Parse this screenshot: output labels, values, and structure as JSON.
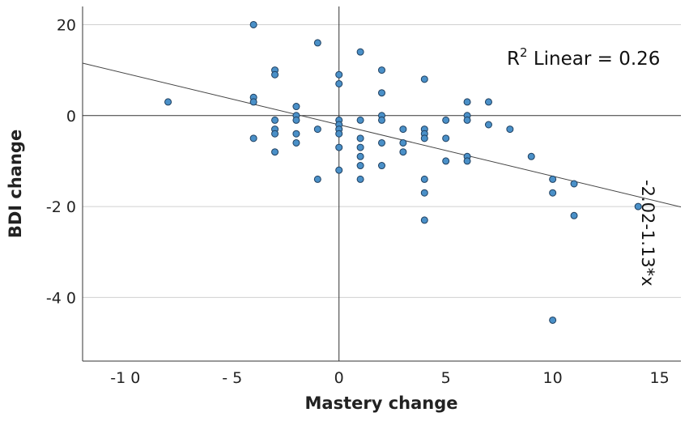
{
  "chart_data": {
    "type": "scatter",
    "xlabel": "Mastery change",
    "ylabel": "BDI change",
    "xlim": [
      -12,
      16
    ],
    "ylim": [
      -54,
      24
    ],
    "x_ticks": [
      -10,
      -5,
      0,
      5,
      10,
      15
    ],
    "x_tick_labels": [
      "-1 0",
      "- 5",
      "0",
      "5",
      "10",
      "15"
    ],
    "y_ticks": [
      20,
      0,
      -20,
      -40
    ],
    "y_tick_labels": [
      "20",
      "0",
      "-2 0",
      "-4 0"
    ],
    "gridlines": "horizontal",
    "reference_lines": {
      "x": 0,
      "y": 0
    },
    "point_color": "#4a90c8",
    "points": [
      {
        "x": -8,
        "y": 3
      },
      {
        "x": -4,
        "y": 20
      },
      {
        "x": -4,
        "y": 4
      },
      {
        "x": -4,
        "y": 3
      },
      {
        "x": -4,
        "y": -5
      },
      {
        "x": -3,
        "y": 10
      },
      {
        "x": -3,
        "y": 9
      },
      {
        "x": -3,
        "y": -1
      },
      {
        "x": -3,
        "y": -3
      },
      {
        "x": -3,
        "y": -4
      },
      {
        "x": -3,
        "y": -8
      },
      {
        "x": -2,
        "y": 2
      },
      {
        "x": -2,
        "y": 0
      },
      {
        "x": -2,
        "y": -1
      },
      {
        "x": -2,
        "y": -4
      },
      {
        "x": -2,
        "y": -6
      },
      {
        "x": -1,
        "y": 16
      },
      {
        "x": -1,
        "y": -3
      },
      {
        "x": -1,
        "y": -14
      },
      {
        "x": 0,
        "y": 9
      },
      {
        "x": 0,
        "y": 7
      },
      {
        "x": 0,
        "y": -1
      },
      {
        "x": 0,
        "y": -2
      },
      {
        "x": 0,
        "y": -3
      },
      {
        "x": 0,
        "y": -4
      },
      {
        "x": 0,
        "y": -7
      },
      {
        "x": 0,
        "y": -12
      },
      {
        "x": 1,
        "y": 14
      },
      {
        "x": 1,
        "y": -1
      },
      {
        "x": 1,
        "y": -5
      },
      {
        "x": 1,
        "y": -7
      },
      {
        "x": 1,
        "y": -9
      },
      {
        "x": 1,
        "y": -11
      },
      {
        "x": 1,
        "y": -14
      },
      {
        "x": 2,
        "y": 10
      },
      {
        "x": 2,
        "y": 5
      },
      {
        "x": 2,
        "y": 0
      },
      {
        "x": 2,
        "y": -1
      },
      {
        "x": 2,
        "y": -6
      },
      {
        "x": 2,
        "y": -11
      },
      {
        "x": 3,
        "y": -3
      },
      {
        "x": 3,
        "y": -6
      },
      {
        "x": 3,
        "y": -8
      },
      {
        "x": 4,
        "y": 8
      },
      {
        "x": 4,
        "y": -3
      },
      {
        "x": 4,
        "y": -4
      },
      {
        "x": 4,
        "y": -5
      },
      {
        "x": 4,
        "y": -14
      },
      {
        "x": 4,
        "y": -17
      },
      {
        "x": 4,
        "y": -23
      },
      {
        "x": 5,
        "y": -1
      },
      {
        "x": 5,
        "y": -5
      },
      {
        "x": 5,
        "y": -10
      },
      {
        "x": 6,
        "y": 3
      },
      {
        "x": 6,
        "y": 0
      },
      {
        "x": 6,
        "y": -1
      },
      {
        "x": 6,
        "y": -9
      },
      {
        "x": 6,
        "y": -10
      },
      {
        "x": 7,
        "y": 3
      },
      {
        "x": 7,
        "y": -2
      },
      {
        "x": 8,
        "y": -3
      },
      {
        "x": 9,
        "y": -9
      },
      {
        "x": 10,
        "y": -14
      },
      {
        "x": 10,
        "y": -17
      },
      {
        "x": 10,
        "y": -45
      },
      {
        "x": 11,
        "y": -15
      },
      {
        "x": 11,
        "y": -22
      },
      {
        "x": 14,
        "y": -20
      }
    ],
    "fit_line": {
      "intercept": -2.02,
      "slope": -1.13
    },
    "annotations": {
      "r2_base": "R",
      "r2_sup": "2",
      "r2_text": " Linear = 0.26",
      "equation": "-2.02-1.13*x"
    }
  }
}
